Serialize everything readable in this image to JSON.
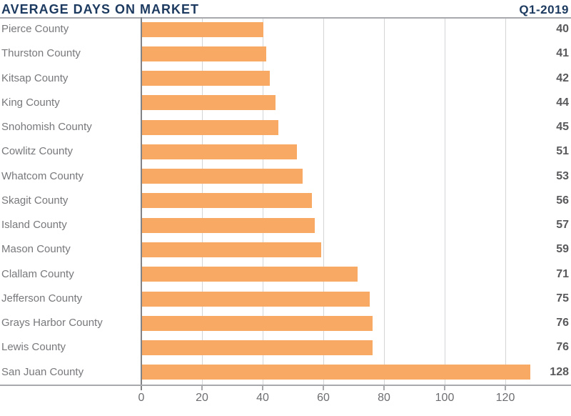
{
  "header": {
    "title": "AVERAGE DAYS ON MARKET",
    "period": "Q1-2019"
  },
  "chart_data": {
    "type": "bar",
    "orientation": "horizontal",
    "title": "AVERAGE DAYS ON MARKET",
    "subtitle": "Q1-2019",
    "categories": [
      "Pierce County",
      "Thurston County",
      "Kitsap County",
      "King County",
      "Snohomish County",
      "Cowlitz County",
      "Whatcom County",
      "Skagit County",
      "Island County",
      "Mason County",
      "Clallam County",
      "Jefferson County",
      "Grays Harbor County",
      "Lewis County",
      "San Juan County"
    ],
    "values": [
      40,
      41,
      42,
      44,
      45,
      51,
      53,
      56,
      57,
      59,
      71,
      75,
      76,
      76,
      128
    ],
    "value_labels": [
      "40",
      "41",
      "42",
      "44",
      "45",
      "51",
      "53",
      "56",
      "57",
      "59",
      "71",
      "75",
      "76",
      "76",
      "128"
    ],
    "xlabel": "",
    "ylabel": "",
    "x_ticks": [
      0,
      20,
      40,
      60,
      80,
      100,
      120
    ],
    "x_tick_labels": [
      "0",
      "20",
      "40",
      "60",
      "80",
      "100",
      "120"
    ],
    "xlim": [
      0,
      142
    ],
    "grid": "vertical-on",
    "legend": "none",
    "bar_color": "#F8A963",
    "data_labels_position": "right-edge"
  },
  "colors": {
    "title_navy": "#1C3A5F",
    "bar_orange": "#F8A963",
    "category_gray": "#77787B",
    "value_gray": "#59595C",
    "axis_line_gray": "#A7A9AC",
    "zero_axis_gray": "#808285",
    "gridline_gray": "#D4D5D7",
    "tick_label_gray": "#6D6E71"
  }
}
